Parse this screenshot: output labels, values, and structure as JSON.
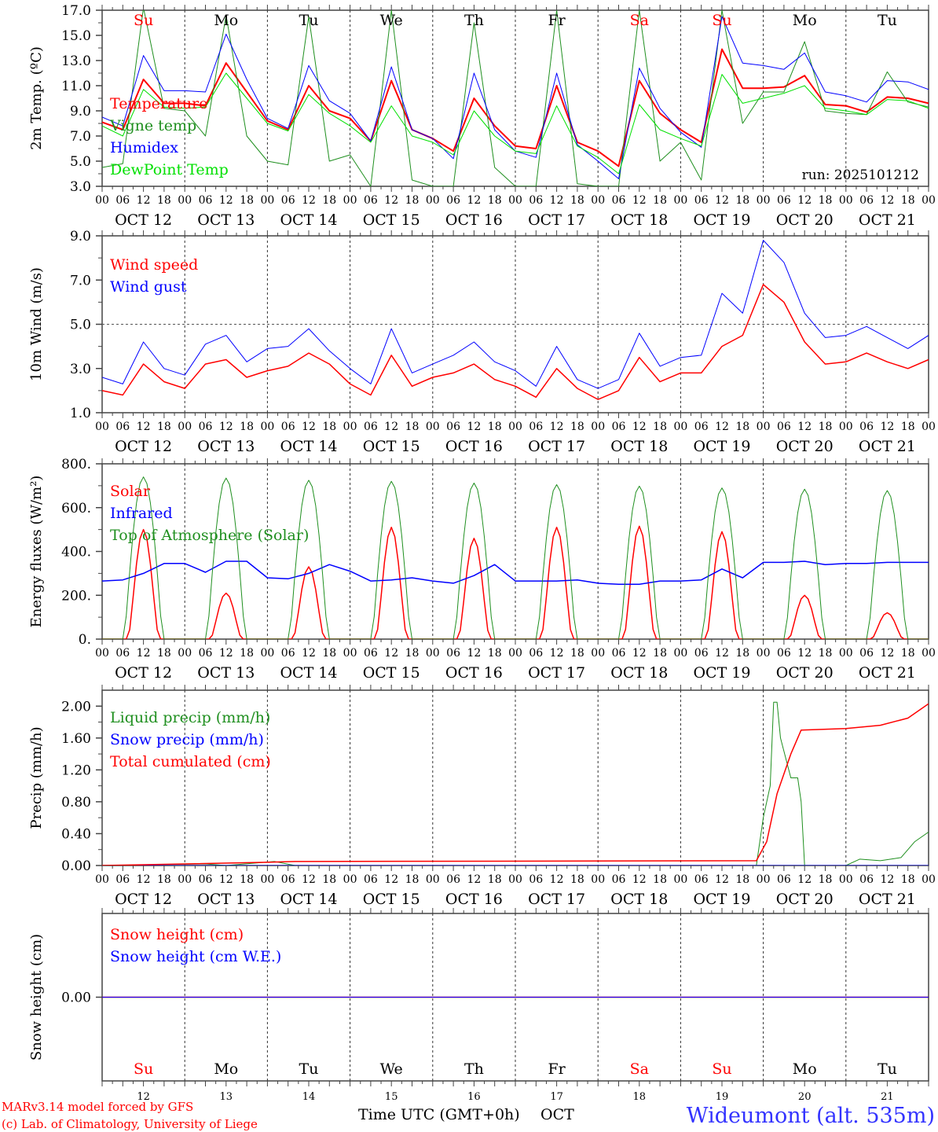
{
  "colors": {
    "red": "#ff0000",
    "dark_green": "#1f8f1f",
    "blue": "#0000ff",
    "light_green": "#00e000",
    "axis": "#000000"
  },
  "day_labels": [
    {
      "label": "Su",
      "color": "#ff0000"
    },
    {
      "label": "Mo",
      "color": "#000000"
    },
    {
      "label": "Tu",
      "color": "#000000"
    },
    {
      "label": "We",
      "color": "#000000"
    },
    {
      "label": "Th",
      "color": "#000000"
    },
    {
      "label": "Fr",
      "color": "#000000"
    },
    {
      "label": "Sa",
      "color": "#ff0000"
    },
    {
      "label": "Su",
      "color": "#ff0000"
    },
    {
      "label": "Mo",
      "color": "#000000"
    },
    {
      "label": "Tu",
      "color": "#000000"
    }
  ],
  "date_labels": [
    "OCT 12",
    "OCT 13",
    "OCT 14",
    "OCT 15",
    "OCT 16",
    "OCT 17",
    "OCT 18",
    "OCT 19",
    "OCT 20",
    "OCT 21"
  ],
  "hour_labels": [
    "00",
    "06",
    "12",
    "18"
  ],
  "bottom_day_numbers": [
    "12",
    "13",
    "14",
    "15",
    "16",
    "17",
    "18",
    "19",
    "20",
    "21"
  ],
  "footer": {
    "model": "MARv3.14 model forced by GFS",
    "credit": "(c) Lab. of Climatology, University of Liege",
    "time_axis": "Time UTC (GMT+0h)",
    "month": "OCT",
    "station": "Wideumont (alt. 535m)"
  },
  "chart_data": [
    {
      "type": "line",
      "id": "temperature",
      "ylabel": "2m Temp. (ºC)",
      "ylim": [
        3,
        17
      ],
      "yticks": [
        3,
        5,
        7,
        9,
        11,
        13,
        15,
        17
      ],
      "tick_format": "0.0",
      "annotation": "run: 2025101212",
      "x_unit": "hours since Oct 12 00 UTC",
      "step_hours": 6,
      "series": [
        {
          "name": "Temperature",
          "color": "#ff0000",
          "width": 2,
          "values": [
            8.1,
            7.5,
            11.5,
            9.6,
            9.6,
            9.4,
            12.8,
            10.5,
            8.2,
            7.5,
            11.0,
            9.0,
            8.4,
            6.6,
            11.4,
            7.5,
            6.8,
            5.8,
            10.0,
            7.8,
            6.2,
            6.0,
            11.0,
            6.5,
            5.8,
            4.6,
            11.4,
            8.8,
            7.5,
            6.5,
            13.9,
            10.8,
            10.8,
            10.9,
            11.8,
            9.5,
            9.4,
            8.9,
            10.1,
            10.0,
            9.6
          ]
        },
        {
          "name": "Vigne temp",
          "color": "#1f8f1f",
          "width": 1,
          "values": [
            4.5,
            4.8,
            17.2,
            9.2,
            9.0,
            7.0,
            16.6,
            7.0,
            5.0,
            4.7,
            16.5,
            5.0,
            5.5,
            3.0,
            17.0,
            3.5,
            3.0,
            3.0,
            16.0,
            4.5,
            3.0,
            3.0,
            17.0,
            3.2,
            3.0,
            3.0,
            17.0,
            5.0,
            6.5,
            3.5,
            17.0,
            8.0,
            10.5,
            10.5,
            14.5,
            9.0,
            8.8,
            8.7,
            12.1,
            9.7,
            9.3
          ]
        },
        {
          "name": "Humidex",
          "color": "#0000ff",
          "width": 1,
          "values": [
            8.5,
            7.8,
            13.4,
            10.6,
            10.6,
            10.5,
            15.1,
            11.5,
            8.4,
            7.6,
            12.6,
            9.8,
            8.8,
            6.6,
            12.5,
            7.5,
            6.8,
            5.2,
            12.0,
            7.5,
            5.8,
            5.3,
            12.0,
            6.3,
            5.0,
            3.6,
            12.4,
            9.2,
            7.3,
            6.1,
            16.5,
            12.8,
            12.6,
            12.3,
            13.6,
            10.5,
            10.2,
            9.7,
            11.4,
            11.3,
            10.7
          ]
        },
        {
          "name": "DewPoint Temp",
          "color": "#00e000",
          "width": 1,
          "values": [
            7.8,
            7.0,
            10.7,
            9.3,
            9.2,
            9.3,
            12.0,
            10.0,
            8.0,
            7.4,
            10.3,
            8.8,
            7.8,
            6.5,
            9.4,
            7.0,
            6.5,
            5.5,
            9.0,
            7.0,
            5.8,
            5.6,
            9.4,
            6.2,
            5.3,
            4.0,
            9.5,
            7.5,
            6.8,
            6.2,
            11.9,
            9.6,
            10.0,
            10.4,
            11.0,
            9.2,
            9.0,
            8.7,
            9.9,
            9.8,
            9.2
          ]
        }
      ]
    },
    {
      "type": "line",
      "id": "wind",
      "ylabel": "10m Wind (m/s)",
      "ylim": [
        1,
        9
      ],
      "yticks": [
        1,
        3,
        5,
        7,
        9
      ],
      "tick_format": "0.0",
      "reference_line": 5,
      "step_hours": 6,
      "series": [
        {
          "name": "Wind speed",
          "color": "#ff0000",
          "width": 1.5,
          "values": [
            2.0,
            1.8,
            3.2,
            2.4,
            2.1,
            3.2,
            3.4,
            2.6,
            2.9,
            3.1,
            3.7,
            3.2,
            2.3,
            1.8,
            3.6,
            2.2,
            2.6,
            2.8,
            3.2,
            2.5,
            2.2,
            1.7,
            3.0,
            2.1,
            1.6,
            2.0,
            3.5,
            2.4,
            2.8,
            2.8,
            4.0,
            4.5,
            6.8,
            6.0,
            4.2,
            3.2,
            3.3,
            3.7,
            3.3,
            3.0,
            3.4
          ]
        },
        {
          "name": "Wind gust",
          "color": "#0000ff",
          "width": 1,
          "values": [
            2.6,
            2.3,
            4.2,
            3.0,
            2.7,
            4.1,
            4.5,
            3.3,
            3.9,
            4.0,
            4.8,
            3.8,
            3.0,
            2.3,
            4.8,
            2.8,
            3.2,
            3.6,
            4.2,
            3.3,
            2.9,
            2.2,
            4.0,
            2.5,
            2.1,
            2.5,
            4.6,
            3.1,
            3.5,
            3.6,
            6.4,
            5.5,
            8.8,
            7.8,
            5.5,
            4.4,
            4.5,
            4.9,
            4.4,
            3.9,
            4.5
          ]
        }
      ]
    },
    {
      "type": "line",
      "id": "energy",
      "ylabel": "Energy fluxes (W/m²)",
      "ylim": [
        0,
        800
      ],
      "yticks": [
        0,
        200,
        400,
        600,
        800
      ],
      "tick_format": "int.",
      "series": [
        {
          "name": "Solar",
          "color": "#ff0000",
          "width": 1.5,
          "daily_peaks": [
            500,
            210,
            330,
            510,
            460,
            510,
            515,
            490,
            200,
            120
          ]
        },
        {
          "name": "Infrared",
          "color": "#0000ff",
          "width": 1.5,
          "step_hours": 6,
          "values": [
            265,
            270,
            300,
            345,
            345,
            305,
            355,
            355,
            280,
            275,
            300,
            340,
            310,
            265,
            270,
            280,
            265,
            255,
            290,
            340,
            265,
            265,
            265,
            270,
            255,
            250,
            250,
            265,
            265,
            270,
            320,
            280,
            350,
            350,
            355,
            340,
            345,
            345,
            350,
            350,
            350
          ]
        },
        {
          "name": "Top of Atmosphere (Solar)",
          "color": "#1f8f1f",
          "width": 1,
          "daily_peaks": [
            740,
            735,
            725,
            720,
            712,
            705,
            698,
            690,
            684,
            678
          ]
        }
      ]
    },
    {
      "type": "line",
      "id": "precip",
      "ylabel": "Precip (mm/h)",
      "ylim": [
        0,
        2.2
      ],
      "yticks": [
        0,
        0.4,
        0.8,
        1.2,
        1.6,
        2.0
      ],
      "tick_format": "0.00",
      "series": [
        {
          "name": "Liquid precip (mm/h)",
          "color": "#1f8f1f",
          "width": 1,
          "points": [
            [
              0,
              0
            ],
            [
              30,
              0.02
            ],
            [
              36,
              0
            ],
            [
              50,
              0.05
            ],
            [
              56,
              0
            ],
            [
              190,
              0
            ],
            [
              192,
              0.6
            ],
            [
              194,
              1.0
            ],
            [
              195,
              2.05
            ],
            [
              196,
              2.05
            ],
            [
              197,
              1.6
            ],
            [
              200,
              1.1
            ],
            [
              202,
              1.1
            ],
            [
              203,
              0.8
            ],
            [
              204,
              0
            ],
            [
              216,
              0
            ],
            [
              220,
              0.08
            ],
            [
              226,
              0.06
            ],
            [
              232,
              0.1
            ],
            [
              236,
              0.3
            ],
            [
              240,
              0.42
            ]
          ]
        },
        {
          "name": "Snow precip (mm/h)",
          "color": "#0000ff",
          "width": 1,
          "points": [
            [
              0,
              0
            ],
            [
              240,
              0
            ]
          ]
        },
        {
          "name": "Total cumulated (cm)",
          "color": "#ff0000",
          "width": 1.5,
          "points": [
            [
              0,
              0
            ],
            [
              24,
              0.02
            ],
            [
              48,
              0.04
            ],
            [
              56,
              0.05
            ],
            [
              190,
              0.06
            ],
            [
              193,
              0.3
            ],
            [
              196,
              0.9
            ],
            [
              200,
              1.4
            ],
            [
              203,
              1.7
            ],
            [
              216,
              1.72
            ],
            [
              226,
              1.76
            ],
            [
              234,
              1.85
            ],
            [
              240,
              2.03
            ]
          ]
        }
      ]
    },
    {
      "type": "line",
      "id": "snow",
      "ylabel": "Snow height (cm)",
      "ylim": [
        -1,
        1
      ],
      "yticks": [
        0
      ],
      "tick_format": "0.00",
      "series": [
        {
          "name": "Snow height (cm)",
          "color": "#ff0000",
          "width": 1.5,
          "points": [
            [
              0,
              0
            ],
            [
              240,
              0
            ]
          ]
        },
        {
          "name": "Snow height (cm W.E.)",
          "color": "#0000ff",
          "width": 1,
          "points": [
            [
              0,
              0
            ],
            [
              240,
              0
            ]
          ]
        }
      ]
    }
  ]
}
